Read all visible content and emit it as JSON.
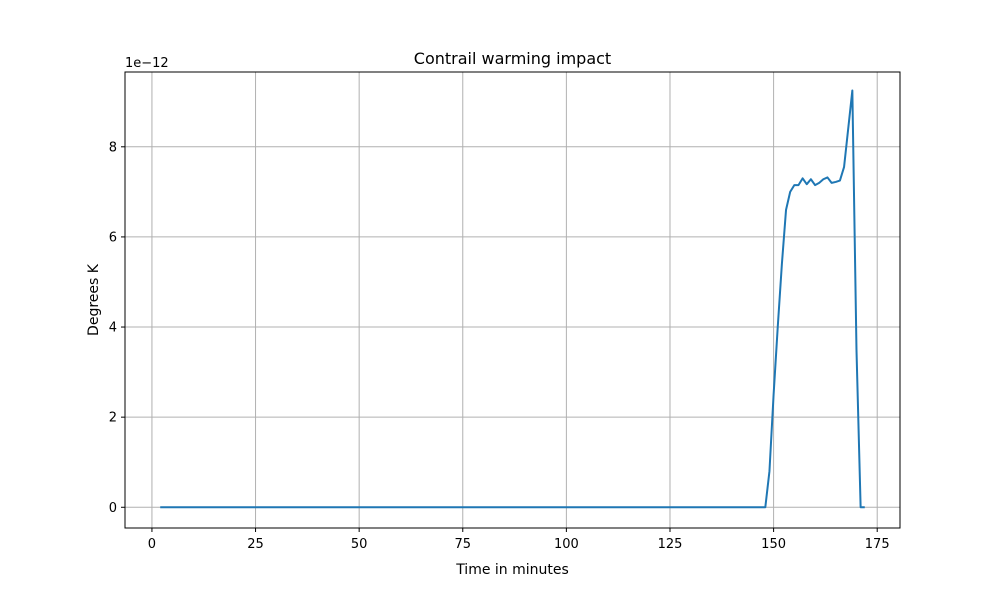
{
  "chart_data": {
    "type": "line",
    "title": "Contrail warming impact",
    "xlabel": "Time in minutes",
    "ylabel": "Degrees K",
    "y_offset_text": "1e−12",
    "xlim": [
      -6.5,
      180.5
    ],
    "ylim": [
      -0.46,
      9.66
    ],
    "x_ticks": [
      0,
      25,
      50,
      75,
      100,
      125,
      150,
      175
    ],
    "y_ticks": [
      0,
      2,
      4,
      6,
      8
    ],
    "x_tick_labels": [
      "0",
      "25",
      "50",
      "75",
      "100",
      "125",
      "150",
      "175"
    ],
    "y_tick_labels": [
      "0",
      "2",
      "4",
      "6",
      "8"
    ],
    "grid": true,
    "series": [
      {
        "color": "#1f77b4",
        "x": [
          2,
          148,
          149,
          150,
          151,
          152,
          153,
          154,
          155,
          156,
          157,
          158,
          159,
          160,
          161,
          162,
          163,
          164,
          165,
          166,
          167,
          168,
          169,
          170,
          171,
          172
        ],
        "y": [
          0,
          0,
          0.8,
          2.5,
          4.0,
          5.4,
          6.6,
          7.0,
          7.15,
          7.15,
          7.3,
          7.17,
          7.28,
          7.15,
          7.2,
          7.28,
          7.32,
          7.2,
          7.22,
          7.25,
          7.55,
          8.4,
          9.25,
          3.5,
          0,
          0
        ]
      }
    ]
  }
}
